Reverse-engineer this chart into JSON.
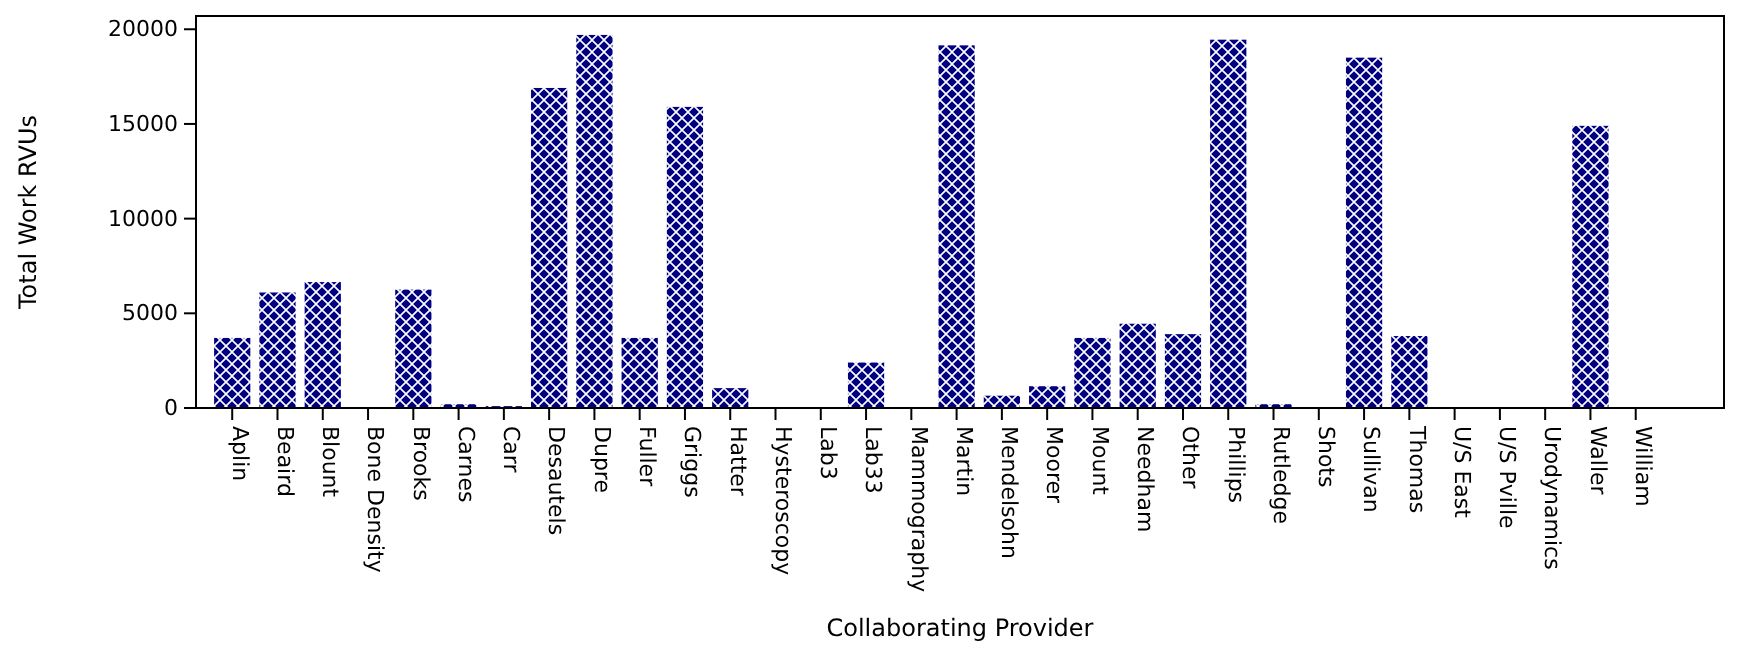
{
  "chart_data": {
    "type": "bar",
    "xlabel": "Collaborating Provider",
    "ylabel": "Total Work RVUs",
    "categories": [
      "Aplin",
      "Beaird",
      "Blount",
      "Bone Density",
      "Brooks",
      "Carnes",
      "Carr",
      "Desautels",
      "Dupre",
      "Fuller",
      "Griggs",
      "Hatter",
      "Hysteroscopy",
      "Lab3",
      "Lab33",
      "Mammography",
      "Martin",
      "Mendelsohn",
      "Moorer",
      "Mount",
      "Needham",
      "Other",
      "Phillips",
      "Rutledge",
      "Shots",
      "Sullivan",
      "Thomas",
      "U/S East",
      "U/S Pville",
      "Urodynamics",
      "Waller",
      "William"
    ],
    "values": [
      3700,
      6100,
      6650,
      0,
      6250,
      200,
      100,
      16900,
      19700,
      3700,
      15900,
      1050,
      0,
      0,
      2400,
      0,
      19150,
      650,
      1150,
      3700,
      4450,
      3900,
      19450,
      200,
      0,
      18500,
      3800,
      0,
      0,
      0,
      14900,
      0
    ],
    "color": "#000080",
    "ylim": [
      0,
      20700
    ],
    "yticks": [
      0,
      5000,
      10000,
      15000,
      20000
    ],
    "grid": false
  }
}
